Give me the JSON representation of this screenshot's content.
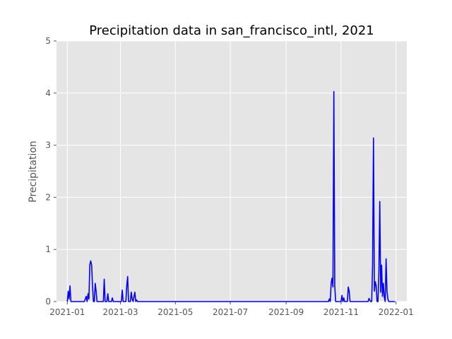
{
  "chart_data": {
    "type": "line",
    "title": "Precipitation data in san_francisco_intl, 2021",
    "xlabel": "",
    "ylabel": "Precipitation",
    "xlim": [
      "2020-12-20",
      "2022-01-13"
    ],
    "ylim": [
      0,
      5
    ],
    "grid": true,
    "legend": "none",
    "x_ticks": [
      "2021-01",
      "2021-03",
      "2021-05",
      "2021-07",
      "2021-09",
      "2021-11",
      "2022-01"
    ],
    "y_ticks": [
      "0",
      "1",
      "2",
      "3",
      "4",
      "5"
    ],
    "series": [
      {
        "color": "#0000ff",
        "points": [
          [
            "2021-01-01",
            0.0
          ],
          [
            "2021-01-02",
            0.2
          ],
          [
            "2021-01-03",
            0.05
          ],
          [
            "2021-01-04",
            0.3
          ],
          [
            "2021-01-05",
            0.0
          ],
          [
            "2021-01-20",
            0.0
          ],
          [
            "2021-01-21",
            0.05
          ],
          [
            "2021-01-22",
            0.1
          ],
          [
            "2021-01-23",
            0.0
          ],
          [
            "2021-01-24",
            0.15
          ],
          [
            "2021-01-25",
            0.05
          ],
          [
            "2021-01-26",
            0.7
          ],
          [
            "2021-01-27",
            0.78
          ],
          [
            "2021-01-28",
            0.7
          ],
          [
            "2021-01-29",
            0.3
          ],
          [
            "2021-01-30",
            0.0
          ],
          [
            "2021-01-31",
            0.0
          ],
          [
            "2021-02-01",
            0.35
          ],
          [
            "2021-02-02",
            0.2
          ],
          [
            "2021-02-03",
            0.0
          ],
          [
            "2021-02-10",
            0.0
          ],
          [
            "2021-02-11",
            0.43
          ],
          [
            "2021-02-12",
            0.0
          ],
          [
            "2021-02-14",
            0.0
          ],
          [
            "2021-02-15",
            0.15
          ],
          [
            "2021-02-16",
            0.0
          ],
          [
            "2021-02-19",
            0.0
          ],
          [
            "2021-02-20",
            0.07
          ],
          [
            "2021-02-21",
            0.0
          ],
          [
            "2021-03-02",
            0.0
          ],
          [
            "2021-03-03",
            0.22
          ],
          [
            "2021-03-04",
            0.0
          ],
          [
            "2021-03-07",
            0.0
          ],
          [
            "2021-03-08",
            0.3
          ],
          [
            "2021-03-09",
            0.48
          ],
          [
            "2021-03-10",
            0.0
          ],
          [
            "2021-03-12",
            0.0
          ],
          [
            "2021-03-13",
            0.18
          ],
          [
            "2021-03-14",
            0.05
          ],
          [
            "2021-03-15",
            0.0
          ],
          [
            "2021-03-17",
            0.18
          ],
          [
            "2021-03-18",
            0.0
          ],
          [
            "2021-03-19",
            0.03
          ],
          [
            "2021-03-20",
            0.0
          ],
          [
            "2021-10-18",
            0.0
          ],
          [
            "2021-10-19",
            0.05
          ],
          [
            "2021-10-20",
            0.0
          ],
          [
            "2021-10-21",
            0.35
          ],
          [
            "2021-10-22",
            0.45
          ],
          [
            "2021-10-23",
            0.28
          ],
          [
            "2021-10-24",
            4.03
          ],
          [
            "2021-10-25",
            0.3
          ],
          [
            "2021-10-26",
            0.0
          ],
          [
            "2021-11-01",
            0.0
          ],
          [
            "2021-11-02",
            0.12
          ],
          [
            "2021-11-03",
            0.0
          ],
          [
            "2021-11-04",
            0.07
          ],
          [
            "2021-11-05",
            0.0
          ],
          [
            "2021-11-08",
            0.0
          ],
          [
            "2021-11-09",
            0.28
          ],
          [
            "2021-11-10",
            0.2
          ],
          [
            "2021-11-11",
            0.0
          ],
          [
            "2021-12-01",
            0.0
          ],
          [
            "2021-12-02",
            0.06
          ],
          [
            "2021-12-03",
            0.02
          ],
          [
            "2021-12-04",
            0.0
          ],
          [
            "2021-12-05",
            0.0
          ],
          [
            "2021-12-06",
            0.7
          ],
          [
            "2021-12-07",
            3.14
          ],
          [
            "2021-12-08",
            0.2
          ],
          [
            "2021-12-09",
            0.38
          ],
          [
            "2021-12-10",
            0.3
          ],
          [
            "2021-12-11",
            0.0
          ],
          [
            "2021-12-12",
            0.0
          ],
          [
            "2021-12-13",
            0.55
          ],
          [
            "2021-12-14",
            1.92
          ],
          [
            "2021-12-15",
            0.18
          ],
          [
            "2021-12-16",
            0.7
          ],
          [
            "2021-12-17",
            0.1
          ],
          [
            "2021-12-18",
            0.35
          ],
          [
            "2021-12-19",
            0.08
          ],
          [
            "2021-12-20",
            0.0
          ],
          [
            "2021-12-21",
            0.82
          ],
          [
            "2021-12-22",
            0.2
          ],
          [
            "2021-12-23",
            0.05
          ],
          [
            "2021-12-24",
            0.0
          ],
          [
            "2021-12-31",
            0.0
          ]
        ]
      }
    ]
  }
}
